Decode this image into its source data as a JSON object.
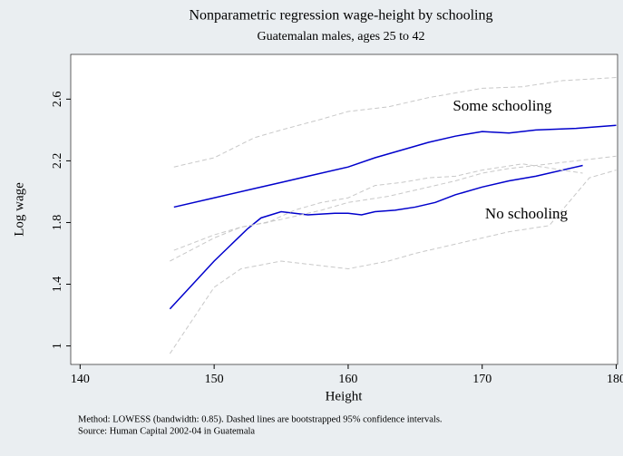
{
  "chart_data": {
    "type": "line",
    "title": "Nonparametric regression wage-height by schooling",
    "subtitle": "Guatemalan males, ages 25 to 42",
    "xlabel": "Height",
    "ylabel": "Log wage",
    "notes": [
      "Method: LOWESS (bandwidth: 0.85). Dashed lines are bootstrapped 95% confidence intervals.",
      "Source: Human Capital 2002-04 in Guatemala"
    ],
    "xlim": [
      139.3,
      180.1
    ],
    "xticks": [
      140,
      150,
      160,
      170,
      180
    ],
    "ylim": [
      0.88,
      2.89
    ],
    "yticks": [
      1,
      1.4,
      1.8,
      2.2,
      2.6
    ],
    "grid": false,
    "series": [
      {
        "name": "Some schooling",
        "color": "#0000cc",
        "style": "solid",
        "x": [
          147,
          150,
          153,
          155,
          157,
          160,
          162,
          164,
          166,
          168,
          170,
          172,
          174,
          177,
          180
        ],
        "values": [
          1.9,
          1.96,
          2.02,
          2.06,
          2.1,
          2.16,
          2.22,
          2.27,
          2.32,
          2.36,
          2.39,
          2.38,
          2.4,
          2.41,
          2.43
        ]
      },
      {
        "name": "No schooling",
        "color": "#0000cc",
        "style": "solid",
        "x": [
          146.7,
          150,
          152.5,
          153.5,
          155,
          157,
          159,
          160,
          161,
          162,
          163.5,
          165,
          166.5,
          168,
          170,
          172,
          174,
          177.5
        ],
        "values": [
          1.24,
          1.55,
          1.76,
          1.83,
          1.87,
          1.85,
          1.86,
          1.86,
          1.85,
          1.87,
          1.88,
          1.9,
          1.93,
          1.98,
          2.03,
          2.07,
          2.1,
          2.17
        ]
      },
      {
        "color": "#c8c8c8",
        "style": "dashed",
        "x": [
          147,
          150,
          153,
          155,
          158,
          160,
          163,
          166,
          168,
          170,
          173,
          176,
          180
        ],
        "values": [
          2.16,
          2.22,
          2.35,
          2.4,
          2.47,
          2.52,
          2.55,
          2.61,
          2.64,
          2.67,
          2.68,
          2.72,
          2.74
        ]
      },
      {
        "color": "#c8c8c8",
        "style": "dashed",
        "x": [
          147,
          150,
          152,
          155,
          158,
          160,
          163,
          166,
          168,
          170,
          172,
          175,
          180
        ],
        "values": [
          1.62,
          1.72,
          1.77,
          1.82,
          1.88,
          1.93,
          1.97,
          2.03,
          2.07,
          2.12,
          2.15,
          2.18,
          2.23
        ]
      },
      {
        "color": "#c8c8c8",
        "style": "dashed",
        "x": [
          146.7,
          150,
          152,
          154,
          156,
          158,
          160,
          162,
          164,
          166,
          168,
          170,
          173,
          177.5
        ],
        "values": [
          1.55,
          1.7,
          1.77,
          1.8,
          1.88,
          1.93,
          1.96,
          2.04,
          2.06,
          2.09,
          2.1,
          2.14,
          2.18,
          2.12
        ]
      },
      {
        "color": "#c8c8c8",
        "style": "dashed",
        "x": [
          146.7,
          150,
          152,
          155,
          158,
          160,
          163,
          165,
          168,
          170,
          172,
          175,
          178,
          180
        ],
        "values": [
          0.95,
          1.38,
          1.5,
          1.55,
          1.52,
          1.5,
          1.55,
          1.6,
          1.66,
          1.7,
          1.74,
          1.78,
          2.09,
          2.14
        ]
      }
    ]
  }
}
